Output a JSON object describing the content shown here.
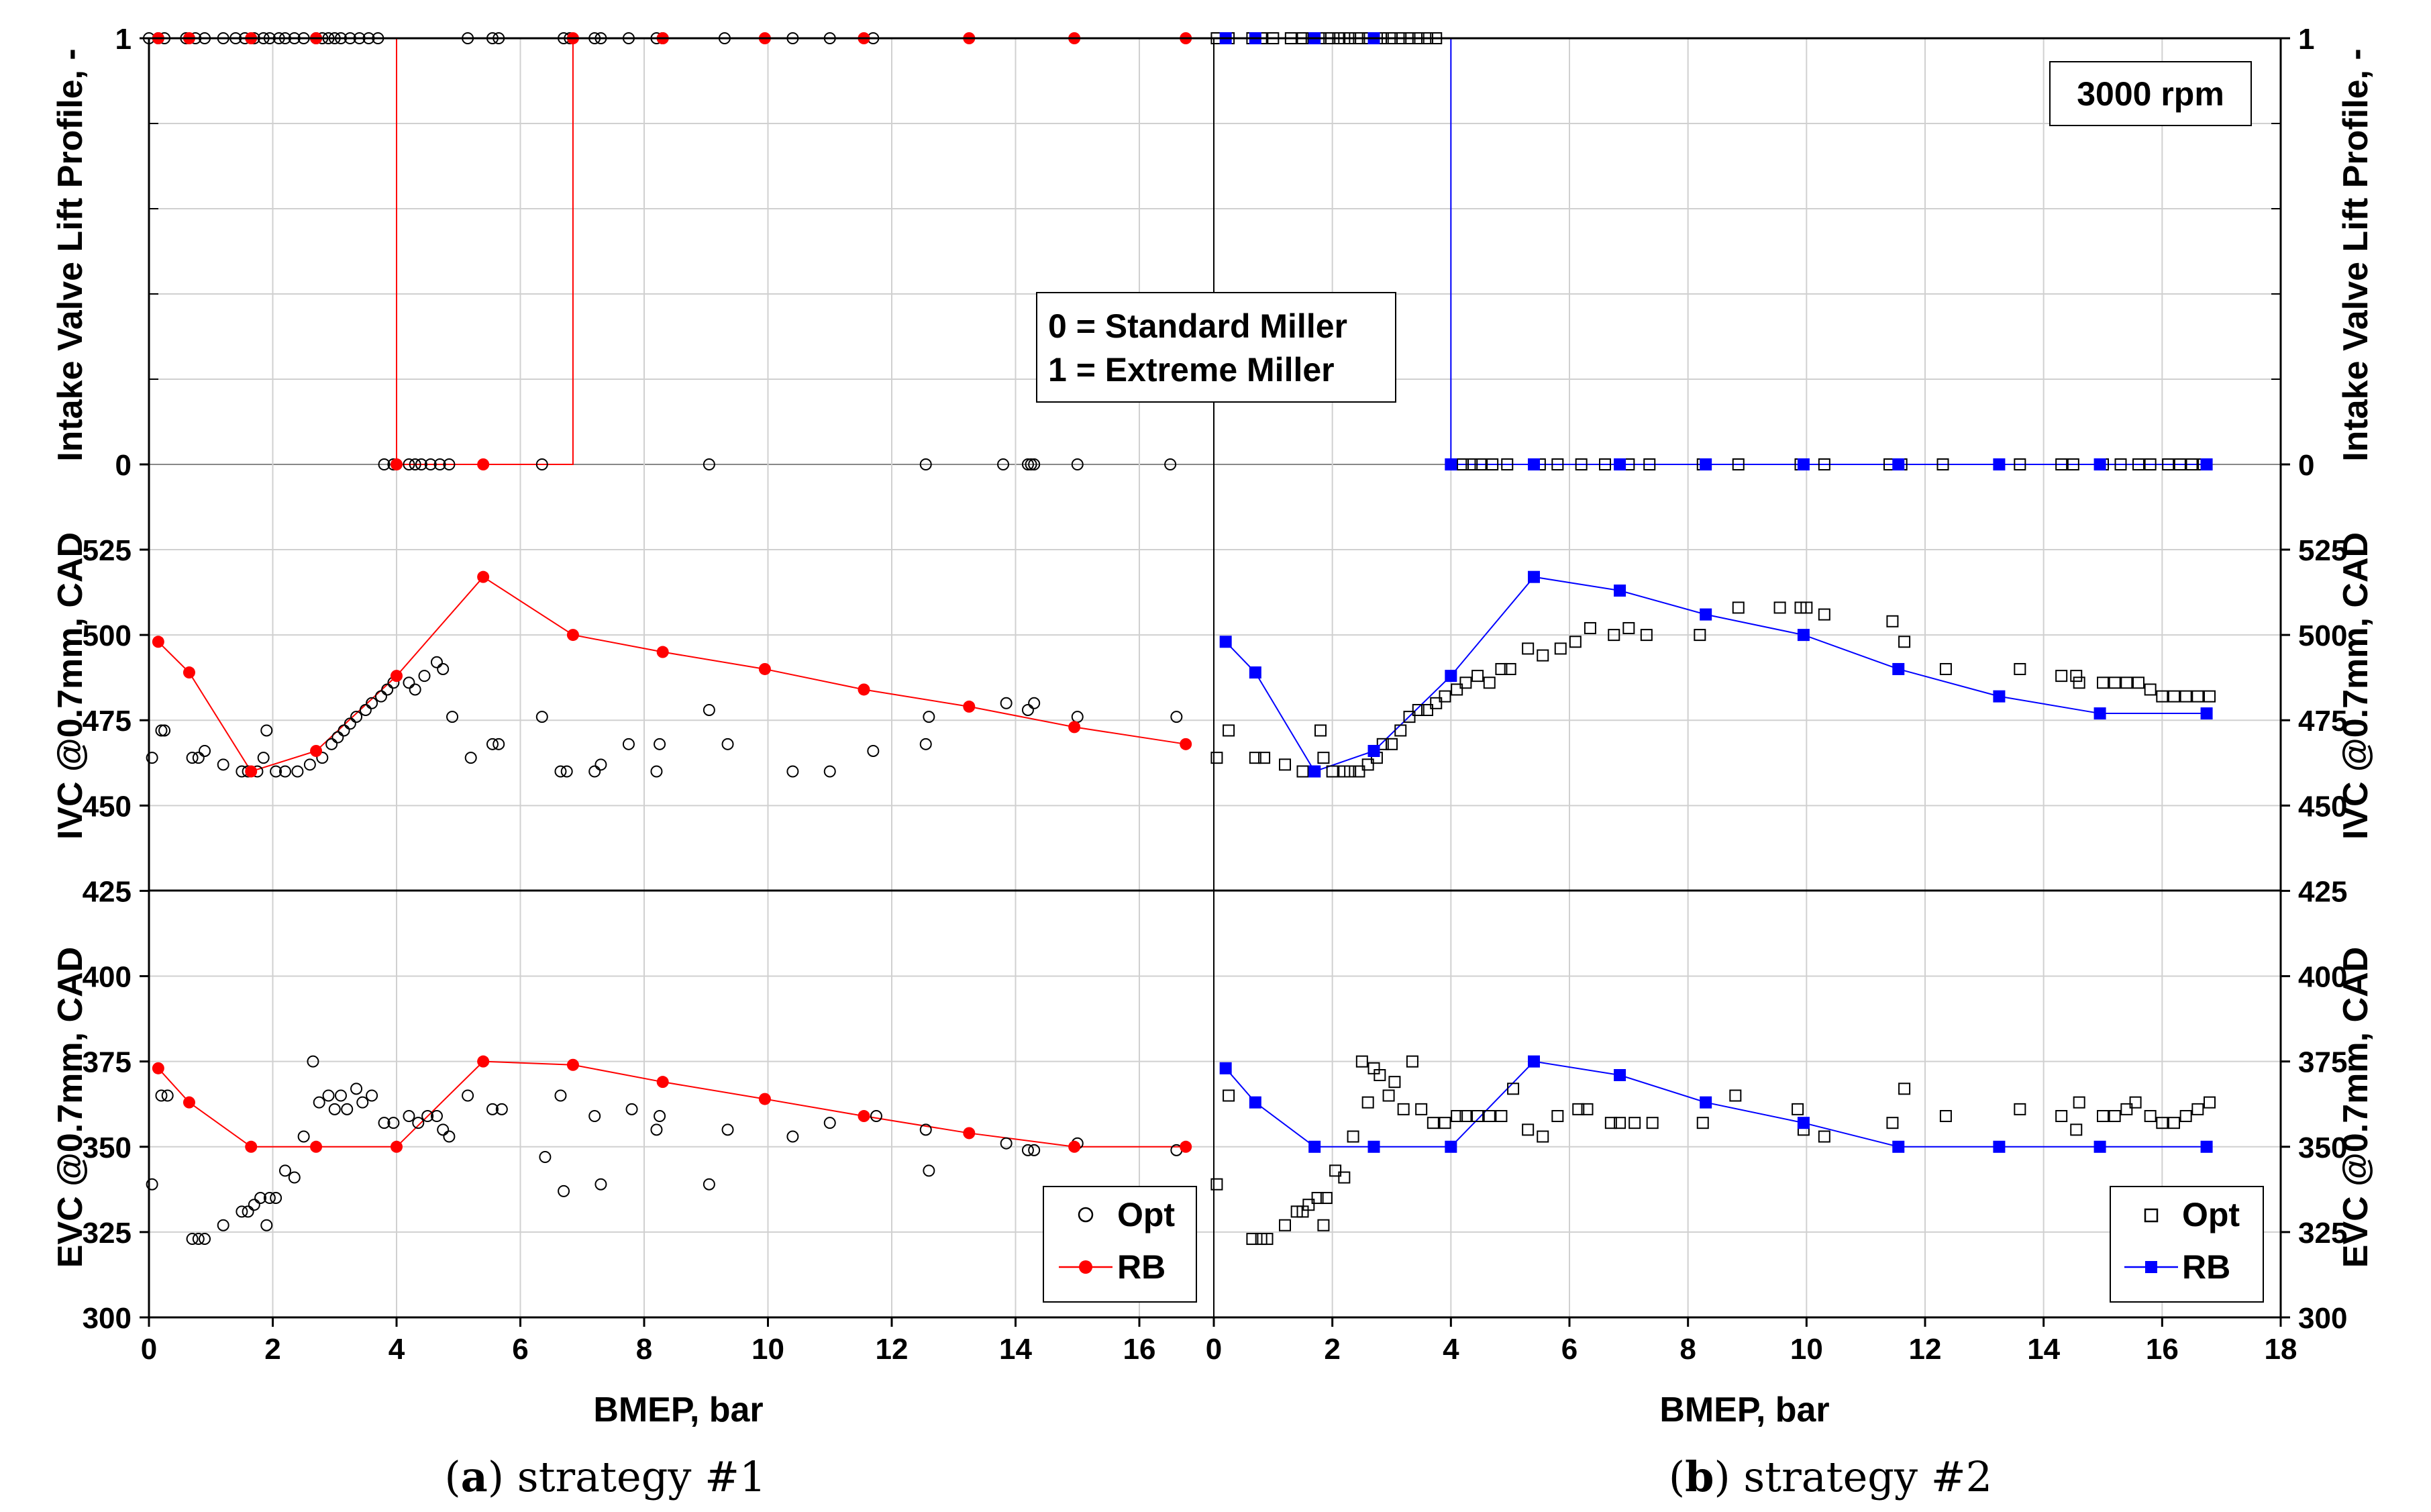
{
  "chart_data": {
    "type": "scatter",
    "rpm_label": "3000 rpm",
    "profile_note": [
      "0 = Standard Miller",
      "1 = Extreme Miller"
    ],
    "xlabel": "BMEP, bar",
    "ylabels": {
      "profile": "Intake Valve Lift Profile, -",
      "ivc": "IVC @0.7mm, CAD",
      "evc": "EVC @0.7mm, CAD"
    },
    "yticks": {
      "profile": [
        "0",
        "1"
      ],
      "valves": [
        "300",
        "325",
        "350",
        "375",
        "400",
        "425",
        "450",
        "475",
        "500",
        "525"
      ]
    },
    "xticks_a": [
      "0",
      "2",
      "4",
      "6",
      "8",
      "10",
      "12",
      "14",
      "16"
    ],
    "xticks_b": [
      "0",
      "2",
      "4",
      "6",
      "8",
      "10",
      "12",
      "14",
      "16",
      "18"
    ],
    "panels": [
      {
        "id": "a",
        "caption_letter": "a",
        "caption_text": " strategy #1",
        "legend": {
          "opt": "Opt",
          "rb": "RB"
        },
        "rb_color": "#ff0000",
        "opt_marker": "circle",
        "rb": {
          "x": [
            0.15,
            0.65,
            1.65,
            2.7,
            4.0,
            5.4,
            6.85,
            8.3,
            9.95,
            11.55,
            13.25,
            14.95,
            16.75
          ],
          "profile": [
            1,
            1,
            1,
            1,
            0,
            0,
            1,
            1,
            1,
            1,
            1,
            1,
            1
          ],
          "ivc": [
            498,
            489,
            460,
            466,
            488,
            517,
            500,
            495,
            490,
            484,
            479,
            473,
            468
          ],
          "evc": [
            373,
            363,
            350,
            350,
            350,
            375,
            374,
            369,
            364,
            359,
            354,
            350,
            350
          ]
        },
        "opt": {
          "profile_x": [
            0.0,
            0.15,
            0.25,
            0.6,
            0.75,
            0.9,
            1.2,
            1.4,
            1.55,
            1.7,
            1.85,
            1.95,
            2.1,
            2.2,
            2.35,
            2.5,
            2.7,
            2.8,
            2.9,
            3.0,
            3.1,
            3.25,
            3.4,
            3.55,
            3.7,
            3.8,
            3.95,
            4.2,
            4.3,
            4.4,
            4.55,
            4.7,
            4.85,
            5.15,
            5.55,
            5.65,
            6.35,
            6.7,
            6.8,
            7.2,
            7.3,
            7.75,
            8.2,
            8.3,
            9.05,
            9.3,
            10.4,
            11.0,
            11.7,
            12.55,
            13.8,
            14.2,
            14.25,
            14.3,
            15.0,
            16.5
          ],
          "profile_y": [
            1,
            1,
            1,
            1,
            1,
            1,
            1,
            1,
            1,
            1,
            1,
            1,
            1,
            1,
            1,
            1,
            1,
            1,
            1,
            1,
            1,
            1,
            1,
            1,
            1,
            0,
            0,
            0,
            0,
            0,
            0,
            0,
            0,
            1,
            1,
            1,
            0,
            1,
            1,
            1,
            1,
            1,
            1,
            1,
            0,
            1,
            1,
            1,
            1,
            0,
            0,
            0,
            0,
            0,
            0,
            0
          ],
          "ivc_x": [
            0.05,
            0.2,
            0.25,
            0.7,
            0.8,
            0.9,
            1.2,
            1.5,
            1.6,
            1.75,
            1.9,
            1.85,
            2.05,
            2.2,
            2.4,
            2.6,
            2.8,
            2.95,
            3.05,
            3.15,
            3.25,
            3.35,
            3.5,
            3.6,
            3.75,
            3.85,
            3.95,
            4.2,
            4.3,
            4.45,
            4.65,
            4.75,
            4.9,
            5.2,
            5.55,
            5.65,
            6.35,
            6.65,
            6.75,
            7.2,
            7.3,
            7.75,
            8.2,
            8.25,
            9.05,
            9.35,
            10.4,
            11.0,
            11.7,
            12.55,
            12.6,
            13.85,
            14.2,
            14.3,
            15.0,
            16.6
          ],
          "ivc_y": [
            464,
            472,
            472,
            464,
            464,
            466,
            462,
            460,
            460,
            460,
            472,
            464,
            460,
            460,
            460,
            462,
            464,
            468,
            470,
            472,
            474,
            476,
            478,
            480,
            482,
            484,
            486,
            486,
            484,
            488,
            492,
            490,
            476,
            464,
            468,
            468,
            476,
            460,
            460,
            460,
            462,
            468,
            460,
            468,
            478,
            468,
            460,
            460,
            466,
            468,
            476,
            480,
            478,
            480,
            476,
            476
          ],
          "evc_x": [
            0.05,
            0.2,
            0.3,
            0.7,
            0.8,
            0.9,
            1.2,
            1.5,
            1.6,
            1.7,
            1.8,
            1.9,
            1.95,
            2.05,
            2.2,
            2.35,
            2.5,
            2.65,
            2.75,
            2.9,
            3.0,
            3.1,
            3.2,
            3.35,
            3.45,
            3.6,
            3.8,
            3.95,
            4.2,
            4.35,
            4.5,
            4.65,
            4.75,
            4.85,
            5.15,
            5.55,
            5.7,
            6.4,
            6.65,
            6.7,
            7.2,
            7.3,
            7.8,
            8.2,
            8.25,
            9.05,
            9.35,
            10.4,
            11.0,
            11.75,
            12.55,
            12.6,
            13.85,
            14.2,
            14.3,
            15.0,
            16.6
          ],
          "evc_y": [
            339,
            365,
            365,
            323,
            323,
            323,
            327,
            331,
            331,
            333,
            335,
            327,
            335,
            335,
            343,
            341,
            353,
            375,
            363,
            365,
            361,
            365,
            361,
            367,
            363,
            365,
            357,
            357,
            359,
            357,
            359,
            359,
            355,
            353,
            365,
            361,
            361,
            347,
            365,
            337,
            359,
            339,
            361,
            355,
            359,
            339,
            355,
            353,
            357,
            359,
            355,
            343,
            351,
            349,
            349,
            351,
            349
          ]
        }
      },
      {
        "id": "b",
        "caption_letter": "b",
        "caption_text": " strategy #2",
        "legend": {
          "opt": "Opt",
          "rb": "RB"
        },
        "rb_color": "#0000ff",
        "opt_marker": "square",
        "rb": {
          "x": [
            0.2,
            0.7,
            1.7,
            2.7,
            4.0,
            5.4,
            6.85,
            8.3,
            9.95,
            11.55,
            13.25,
            14.95,
            16.75
          ],
          "profile": [
            1,
            1,
            1,
            1,
            0,
            0,
            0,
            0,
            0,
            0,
            0,
            0,
            0
          ],
          "ivc": [
            498,
            489,
            460,
            466,
            488,
            517,
            513,
            506,
            500,
            490,
            482,
            477,
            477
          ],
          "evc": [
            373,
            363,
            350,
            350,
            350,
            375,
            371,
            363,
            357,
            350,
            350,
            350,
            350
          ]
        },
        "opt": {
          "profile_x": [
            0.05,
            0.25,
            0.65,
            0.8,
            1.0,
            1.3,
            1.5,
            1.65,
            1.8,
            1.95,
            2.1,
            2.2,
            2.3,
            2.45,
            2.6,
            2.75,
            2.85,
            3.0,
            3.15,
            3.3,
            3.45,
            3.6,
            3.75,
            4.2,
            4.35,
            4.5,
            4.7,
            4.95,
            5.5,
            5.8,
            6.2,
            6.6,
            7.0,
            7.35,
            8.25,
            8.85,
            9.9,
            10.3,
            11.4,
            11.6,
            12.3,
            13.6,
            14.3,
            14.5,
            15.0,
            15.3,
            15.6,
            15.8,
            16.1,
            16.3,
            16.5,
            16.7
          ],
          "profile_y": [
            1,
            1,
            1,
            1,
            1,
            1,
            1,
            1,
            1,
            1,
            1,
            1,
            1,
            1,
            1,
            1,
            1,
            1,
            1,
            1,
            1,
            1,
            1,
            0,
            0,
            0,
            0,
            0,
            0,
            0,
            0,
            0,
            0,
            0,
            0,
            0,
            0,
            0,
            0,
            0,
            0,
            0,
            0,
            0,
            0,
            0,
            0,
            0,
            0,
            0,
            0,
            0
          ],
          "ivc_x": [
            0.05,
            0.25,
            0.7,
            0.85,
            1.2,
            1.5,
            1.7,
            1.8,
            1.85,
            2.0,
            2.2,
            2.3,
            2.45,
            2.6,
            2.75,
            2.85,
            3.0,
            3.15,
            3.3,
            3.45,
            3.6,
            3.75,
            3.9,
            4.1,
            4.25,
            4.45,
            4.65,
            4.85,
            5.0,
            5.3,
            5.55,
            5.85,
            6.1,
            6.35,
            6.75,
            7.0,
            7.3,
            8.2,
            8.85,
            9.55,
            9.9,
            10.0,
            10.3,
            11.45,
            11.65,
            12.35,
            13.6,
            14.3,
            14.55,
            14.6,
            15.0,
            15.2,
            15.4,
            15.6,
            15.8,
            16.0,
            16.2,
            16.4,
            16.6,
            16.8
          ],
          "ivc_y": [
            464,
            472,
            464,
            464,
            462,
            460,
            460,
            472,
            464,
            460,
            460,
            460,
            460,
            462,
            464,
            468,
            468,
            472,
            476,
            478,
            478,
            480,
            482,
            484,
            486,
            488,
            486,
            490,
            490,
            496,
            494,
            496,
            498,
            502,
            500,
            502,
            500,
            500,
            508,
            508,
            508,
            508,
            506,
            504,
            498,
            490,
            490,
            488,
            488,
            486,
            486,
            486,
            486,
            486,
            484,
            482,
            482,
            482,
            482,
            482
          ],
          "evc_x": [
            0.05,
            0.25,
            0.65,
            0.8,
            0.9,
            1.2,
            1.4,
            1.5,
            1.6,
            1.75,
            1.85,
            1.9,
            2.05,
            2.2,
            2.35,
            2.5,
            2.6,
            2.7,
            2.8,
            2.95,
            3.05,
            3.2,
            3.35,
            3.5,
            3.7,
            3.9,
            4.1,
            4.25,
            4.45,
            4.65,
            4.85,
            5.05,
            5.3,
            5.55,
            5.8,
            6.15,
            6.3,
            6.7,
            6.85,
            7.1,
            7.4,
            8.25,
            8.8,
            9.85,
            9.95,
            10.3,
            11.45,
            11.65,
            12.35,
            13.6,
            14.3,
            14.55,
            14.6,
            15.0,
            15.2,
            15.4,
            15.55,
            15.8,
            16.0,
            16.2,
            16.4,
            16.6,
            16.8
          ],
          "evc_y": [
            339,
            365,
            323,
            323,
            323,
            327,
            331,
            331,
            333,
            335,
            327,
            335,
            343,
            341,
            353,
            375,
            363,
            373,
            371,
            365,
            369,
            361,
            375,
            361,
            357,
            357,
            359,
            359,
            359,
            359,
            359,
            367,
            355,
            353,
            359,
            361,
            361,
            357,
            357,
            357,
            357,
            357,
            365,
            361,
            355,
            353,
            357,
            367,
            359,
            361,
            359,
            355,
            363,
            359,
            359,
            361,
            363,
            359,
            357,
            357,
            359,
            361,
            363
          ]
        }
      }
    ]
  }
}
